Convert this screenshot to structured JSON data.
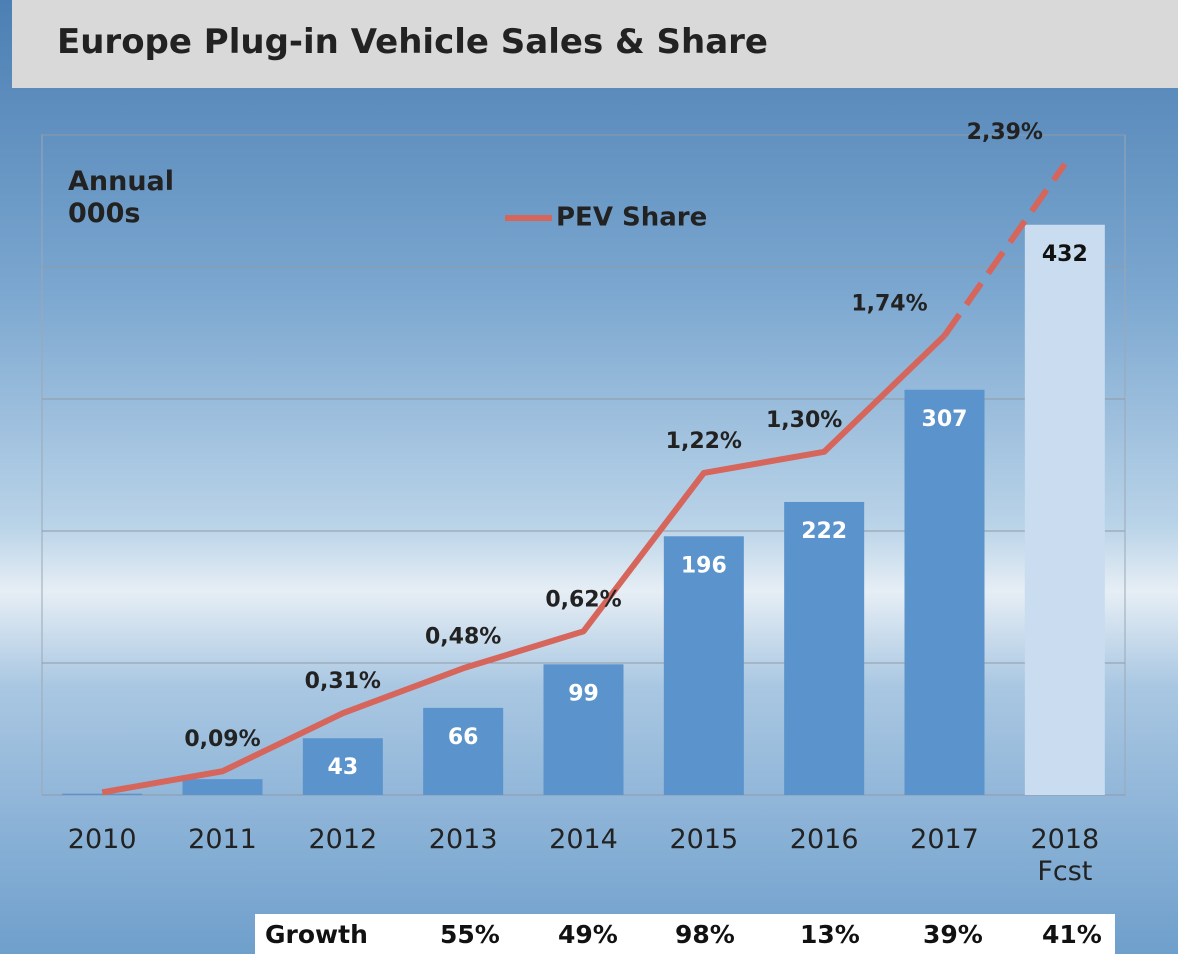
{
  "title": "Europe Plug-in Vehicle Sales & Share",
  "chart_data": {
    "type": "bar",
    "annotation": "Annual\n000s",
    "categories": [
      "2010",
      "2011",
      "2012",
      "2013",
      "2014",
      "2015",
      "2016",
      "2017",
      "2018\nFcst"
    ],
    "ylim": [
      0,
      500
    ],
    "yticks": [
      0,
      100,
      200,
      300,
      400,
      500
    ],
    "y2lim": [
      0,
      2.5
    ],
    "grid": true,
    "series": [
      {
        "name": "Sales",
        "type": "bar",
        "colors": [
          "#5b93cc",
          "#5b93cc",
          "#5b93cc",
          "#5b93cc",
          "#5b93cc",
          "#5b93cc",
          "#5b93cc",
          "#5b93cc",
          "#c9dcf0"
        ],
        "values": [
          1,
          12,
          43,
          66,
          99,
          196,
          222,
          307,
          432
        ],
        "value_labels": [
          null,
          null,
          "43",
          "66",
          "99",
          "196",
          "222",
          "307",
          "432"
        ]
      },
      {
        "name": "PEV Share",
        "type": "line",
        "axis": "y2",
        "color": "#d6655c",
        "dash_from_index": 7,
        "values": [
          0.01,
          0.09,
          0.31,
          0.48,
          0.62,
          1.22,
          1.3,
          1.74,
          2.39
        ],
        "value_labels": [
          null,
          "0,09%",
          "0,31%",
          "0,48%",
          "0,62%",
          "1,22%",
          "1,30%",
          "1,74%",
          "2,39%"
        ]
      }
    ]
  },
  "growth_table": {
    "rows": [
      [
        "Growth",
        "55%",
        "49%",
        "98%",
        "13%",
        "39%",
        "41%"
      ]
    ]
  }
}
